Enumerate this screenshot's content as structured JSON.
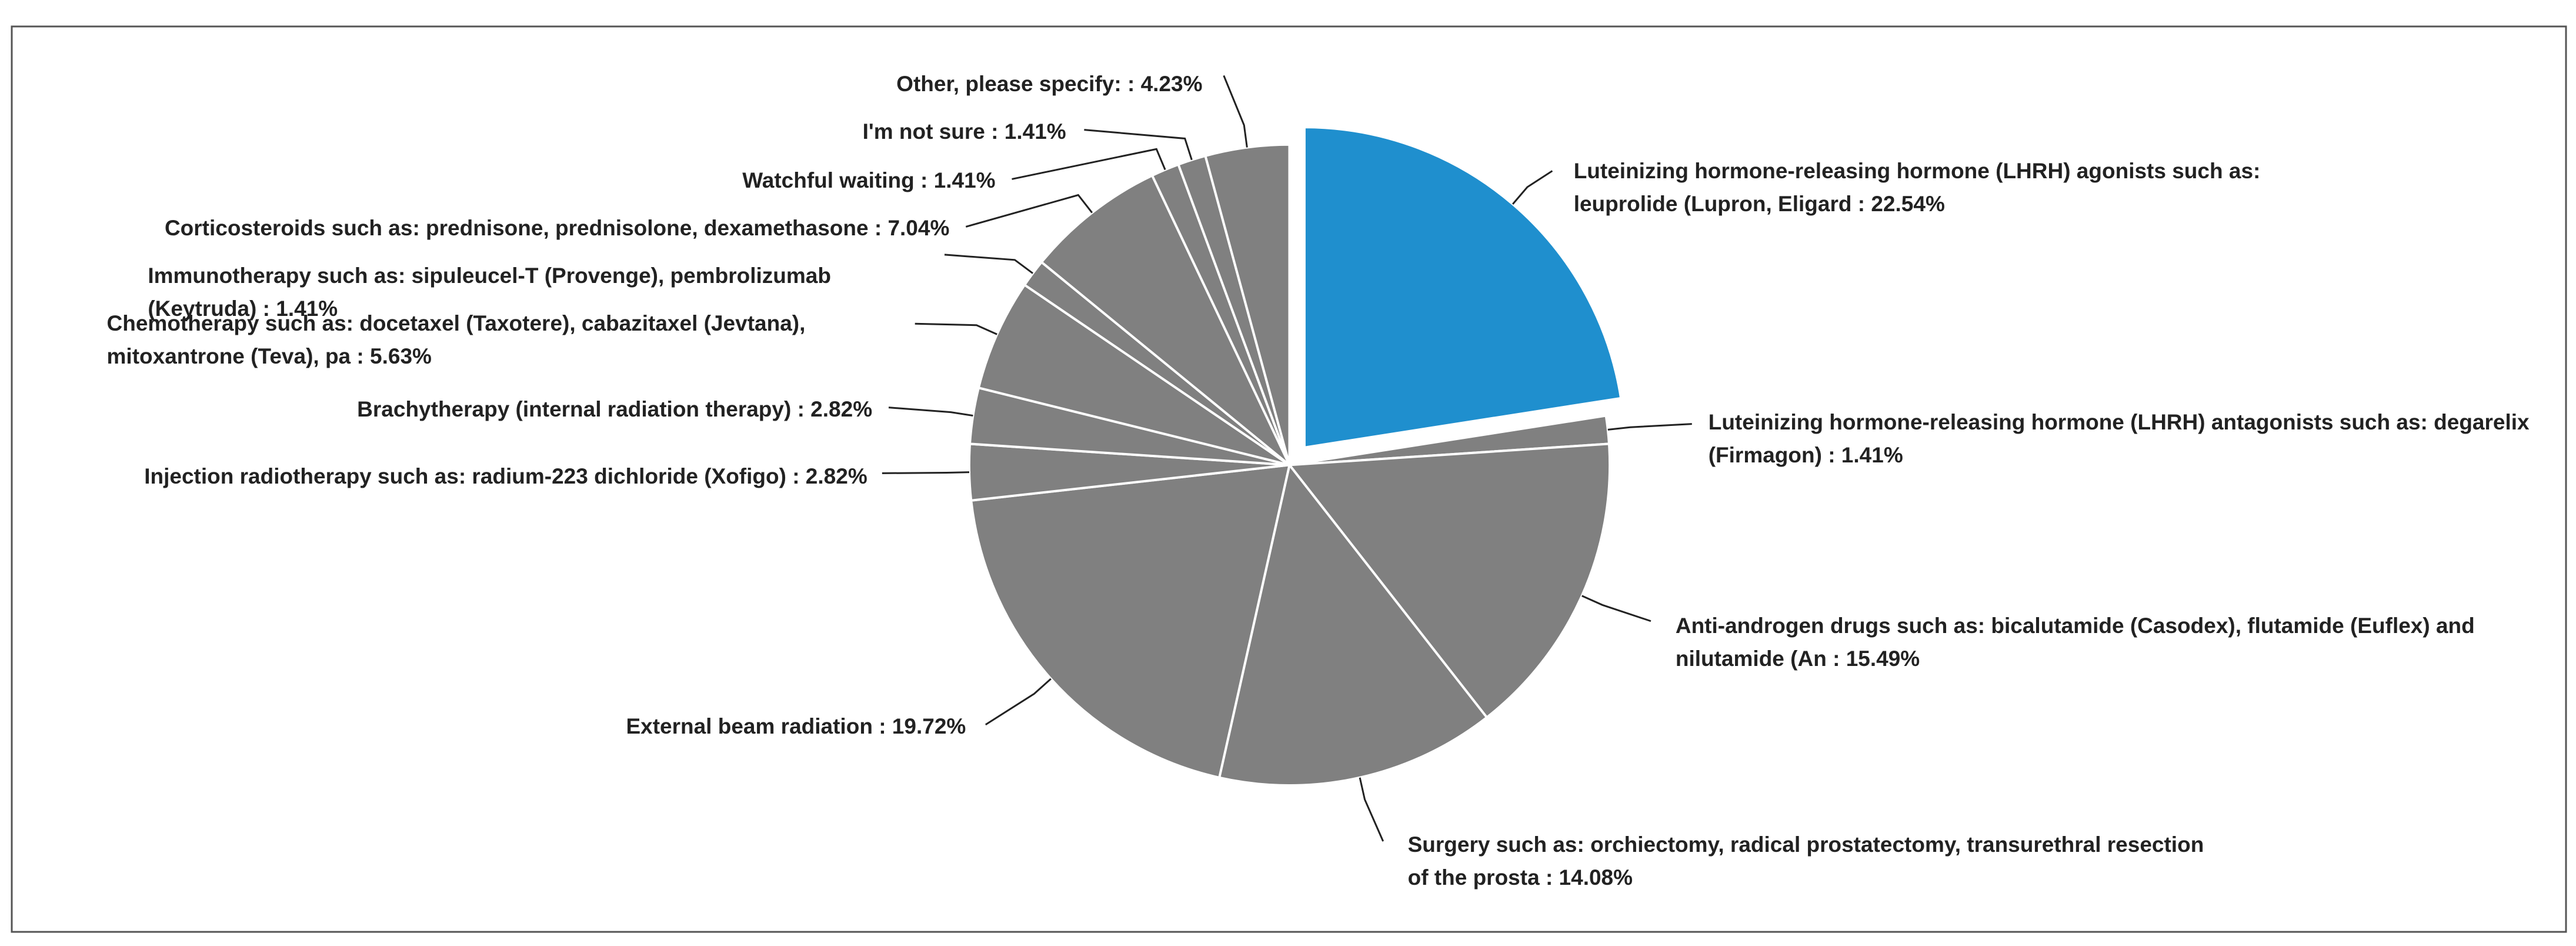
{
  "chart_data": {
    "type": "pie",
    "categories": [
      "Luteinizing hormone-releasing hormone (LHRH) agonists such as: leuprolide (Lupron, Eligard",
      "Luteinizing hormone-releasing hormone (LHRH) antagonists such as: degarelix (Firmagon)",
      "Anti-androgen drugs such as: bicalutamide (Casodex), flutamide (Euflex) and nilutamide (An",
      "Surgery such as: orchiectomy, radical prostatectomy, transurethral resection of the prosta",
      "External beam radiation",
      "Injection radiotherapy such as: radium-223 dichloride (Xofigo)",
      "Brachytherapy (internal radiation therapy)",
      "Chemotherapy such as: docetaxel (Taxotere), cabazitaxel (Jevtana), mitoxantrone (Teva), pa",
      "Immunotherapy such as: sipuleucel-T (Provenge), pembrolizumab (Keytruda)",
      "Corticosteroids such as: prednisone, prednisolone, dexamethasone",
      "Watchful waiting",
      "I'm not sure",
      "Other, please specify:"
    ],
    "values": [
      22.54,
      1.41,
      15.49,
      14.08,
      19.72,
      2.82,
      2.82,
      5.63,
      1.41,
      7.04,
      1.41,
      1.41,
      4.23
    ],
    "value_labels": [
      ": 22.54%",
      ": 1.41%",
      ": 15.49%",
      ": 14.08%",
      ": 19.72%",
      ": 2.82%",
      ": 2.82%",
      ": 5.63%",
      ": 1.41%",
      ": 7.04%",
      ": 1.41%",
      ": 1.41%",
      ": 4.23%"
    ],
    "colors": [
      "#1f8fce",
      "#808080",
      "#808080",
      "#808080",
      "#808080",
      "#808080",
      "#808080",
      "#808080",
      "#808080",
      "#808080",
      "#808080",
      "#808080",
      "#808080"
    ],
    "exploded": [
      0
    ]
  }
}
